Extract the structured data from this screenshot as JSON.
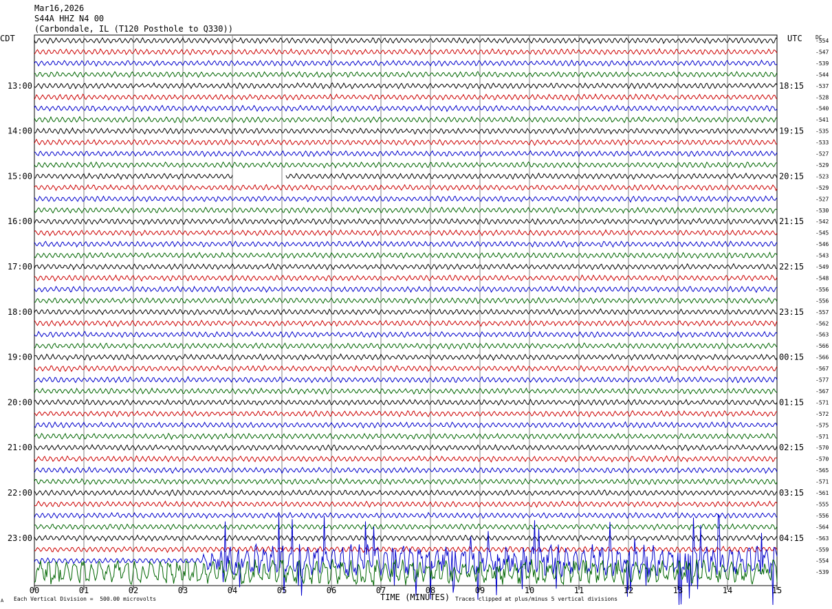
{
  "header": {
    "date": "Mar16,2026",
    "station": "S44A HHZ N4 00",
    "location": "(Carbondale, IL (T120 Posthole to Q330))"
  },
  "axes": {
    "left_title": "CDT",
    "right_title": "UTC",
    "dc_title": "DC",
    "xlabel": "TIME (MINUTES)",
    "x_ticks": [
      "00",
      "01",
      "02",
      "03",
      "04",
      "05",
      "06",
      "07",
      "08",
      "09",
      "10",
      "11",
      "12",
      "13",
      "14",
      "15"
    ]
  },
  "footer": {
    "left": "Each Vertical Division =  500.00 microvolts",
    "right": "Traces clipped at plus/minus 5 vertical divisions",
    "corner": "A"
  },
  "chart_data": {
    "type": "line",
    "title": "",
    "xlabel": "TIME (MINUTES)",
    "xlim": [
      0,
      15
    ],
    "trace_colors": [
      "#000000",
      "#cc0000",
      "#0000cc",
      "#006600"
    ],
    "left_hour_labels": [
      "13:00",
      "14:00",
      "15:00",
      "16:00",
      "17:00",
      "18:00",
      "19:00",
      "20:00",
      "21:00",
      "22:00",
      "23:00"
    ],
    "right_hour_labels": [
      "18:15",
      "19:15",
      "20:15",
      "21:15",
      "22:15",
      "23:15",
      "00:15",
      "01:15",
      "02:15",
      "03:15",
      "04:15"
    ],
    "dc_offsets": [
      "-554",
      "-547",
      "-539",
      "-544",
      "-537",
      "-528",
      "-540",
      "-541",
      "-535",
      "-533",
      "-527",
      "-529",
      "-523",
      "-529",
      "-527",
      "-530",
      "-542",
      "-545",
      "-546",
      "-543",
      "-549",
      "-548",
      "-556",
      "-556",
      "-557",
      "-562",
      "-563",
      "-566",
      "-566",
      "-567",
      "-577",
      "-567",
      "-571",
      "-572",
      "-575",
      "-571",
      "-570",
      "-570",
      "-565",
      "-571",
      "-561",
      "-555",
      "-556",
      "-564",
      "-563",
      "-559",
      "-554",
      "-539"
    ],
    "gap": {
      "trace_index": 12,
      "from_min": 4.0,
      "to_min": 5.08
    },
    "events": [
      {
        "trace_index": 46,
        "from_min": 3.4,
        "to_min": 15,
        "label": ""
      },
      {
        "trace_index": 47,
        "from_min": 0,
        "to_min": 15,
        "label": ""
      }
    ]
  }
}
